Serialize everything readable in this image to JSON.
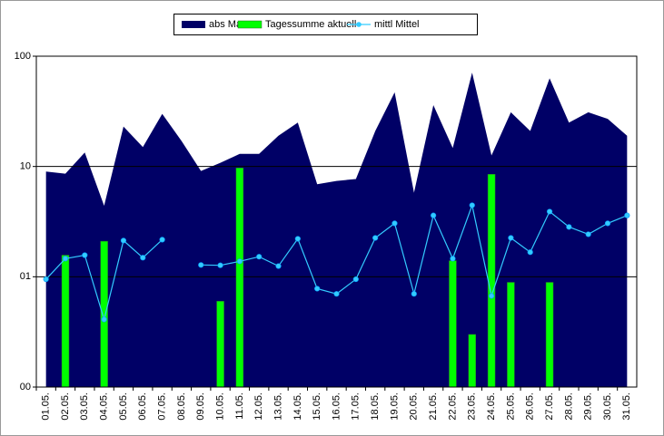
{
  "chart_data": {
    "type": "combo",
    "categories": [
      "01.05.",
      "02.05.",
      "03.05.",
      "04.05.",
      "05.05.",
      "06.05.",
      "07.05.",
      "08.05.",
      "09.05.",
      "10.05.",
      "11.05.",
      "12.05.",
      "13.05.",
      "14.05.",
      "15.05.",
      "16.05.",
      "17.05.",
      "18.05.",
      "19.05.",
      "20.05.",
      "21.05.",
      "22.05.",
      "23.05.",
      "24.05.",
      "25.05.",
      "26.05.",
      "27.05.",
      "28.05.",
      "29.05.",
      "30.05.",
      "31.05."
    ],
    "series": [
      {
        "name": "abs Max",
        "kind": "area",
        "color": "#000066",
        "values": [
          9.0,
          8.6,
          13.4,
          4.4,
          23,
          15,
          30,
          17,
          9.1,
          10.8,
          13,
          13,
          19,
          25,
          6.9,
          7.4,
          7.7,
          21,
          47,
          5.8,
          36,
          14.7,
          71,
          12.6,
          31,
          21,
          63,
          25,
          31,
          27,
          19
        ]
      },
      {
        "name": "Tagessumme aktuell",
        "kind": "bar",
        "color": "#00ff00",
        "values": [
          null,
          1.57,
          null,
          2.1,
          null,
          null,
          null,
          null,
          null,
          0.6,
          9.7,
          null,
          null,
          null,
          null,
          null,
          null,
          null,
          null,
          null,
          null,
          1.4,
          0.3,
          8.5,
          0.89,
          null,
          0.89,
          null,
          null,
          null,
          null
        ]
      },
      {
        "name": "mittl Mittel",
        "kind": "line",
        "color": "#33ccff",
        "values": [
          0.95,
          1.46,
          1.57,
          0.41,
          2.13,
          1.49,
          2.17,
          null,
          1.28,
          1.27,
          1.38,
          1.52,
          1.25,
          2.21,
          0.78,
          0.7,
          0.95,
          2.25,
          3.05,
          0.7,
          3.6,
          1.46,
          4.45,
          0.67,
          2.25,
          1.67,
          3.9,
          2.83,
          2.43,
          3.05,
          3.6
        ]
      }
    ],
    "ylim": [
      0.1,
      100
    ],
    "log_y": true,
    "yticks": [
      {
        "value": 0.1,
        "label": "00"
      },
      {
        "value": 1,
        "label": "01"
      },
      10,
      100
    ],
    "grid": true,
    "legend": "top"
  }
}
